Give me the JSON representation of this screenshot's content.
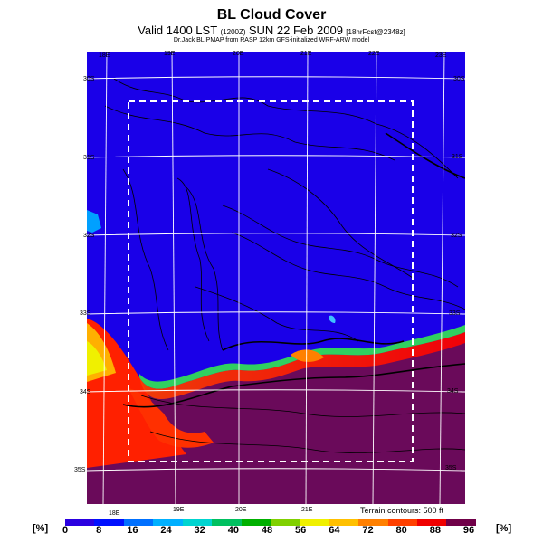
{
  "header": {
    "title": "BL Cloud Cover",
    "subtitle_main": "Valid 1400 LST",
    "subtitle_code": "(1200Z)",
    "subtitle_date": "SUN 22 Feb 2009",
    "subtitle_tail": "[18hrFcst@2348z]",
    "credit": "Dr.Jack BLIPMAP from RASP 12km GFS-initialized WRF-ARW model"
  },
  "map": {
    "lon_labels_top": [
      "18E",
      "19E",
      "20E",
      "21E",
      "22E",
      "23E"
    ],
    "lon_labels_bottom": [
      "18E",
      "19E",
      "20E",
      "21E"
    ],
    "lat_labels_left": [
      "30S",
      "31S",
      "32S",
      "33S",
      "34S",
      "35S"
    ],
    "lat_labels_right": [
      "30S",
      "31S",
      "32S",
      "33S",
      "34S",
      "35S"
    ],
    "terrain_note": "Terrain contours: 500 ft"
  },
  "colorbar": {
    "unit_label": "[%]",
    "ticks": [
      "0",
      "8",
      "16",
      "24",
      "32",
      "40",
      "48",
      "56",
      "64",
      "72",
      "80",
      "88",
      "96"
    ],
    "colors": [
      "#2a00e0",
      "#0010ff",
      "#0070ff",
      "#00b0ff",
      "#00d4d0",
      "#00c060",
      "#00b000",
      "#80d000",
      "#f0f000",
      "#ffc000",
      "#ff8000",
      "#ff4000",
      "#f00000",
      "#700048"
    ]
  }
}
